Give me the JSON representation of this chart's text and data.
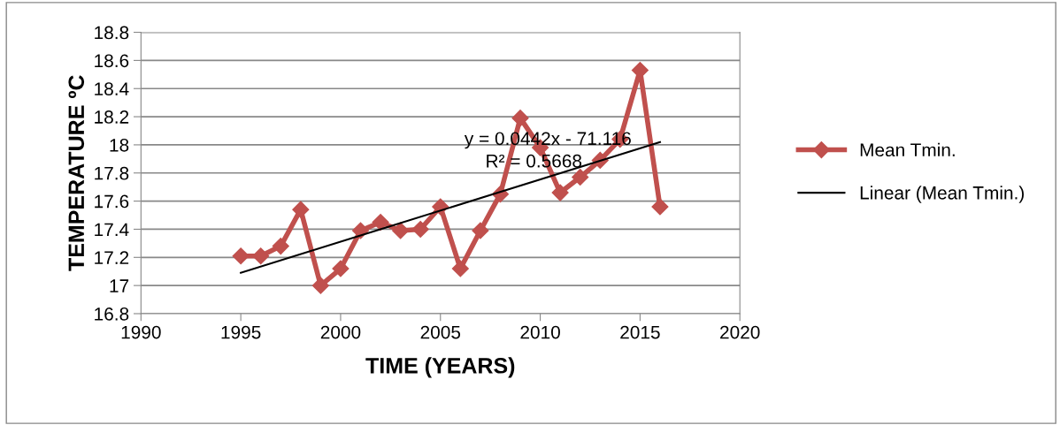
{
  "chart_data": {
    "type": "line",
    "xlabel": "TIME (YEARS)",
    "ylabel": "TEMPERATURE ºC",
    "x": [
      1995,
      1996,
      1997,
      1998,
      1999,
      2000,
      2001,
      2002,
      2003,
      2004,
      2005,
      2006,
      2007,
      2008,
      2009,
      2010,
      2011,
      2012,
      2013,
      2014,
      2015,
      2016
    ],
    "series": [
      {
        "name": "Mean Tmin.",
        "color": "#c0504d",
        "marker": "diamond",
        "values": [
          17.21,
          17.21,
          17.28,
          17.54,
          17.0,
          17.12,
          17.39,
          17.45,
          17.39,
          17.4,
          17.56,
          17.12,
          17.39,
          17.65,
          18.19,
          17.98,
          17.66,
          17.77,
          17.89,
          18.04,
          18.53,
          17.56
        ]
      },
      {
        "name": "Linear (Mean Tmin.)",
        "color": "#000000",
        "marker": "none",
        "x": [
          1995,
          2016
        ],
        "values": [
          17.09,
          18.02
        ]
      }
    ],
    "annotations": [
      "y = 0.0442x - 71.116",
      "R² = 0.5668"
    ],
    "xlim": [
      1990,
      2020
    ],
    "xticks": [
      1990,
      1995,
      2000,
      2005,
      2010,
      2015,
      2020
    ],
    "ylim": [
      16.8,
      18.8
    ],
    "yticks": [
      16.8,
      17,
      17.2,
      17.4,
      17.6,
      17.8,
      18,
      18.2,
      18.4,
      18.6,
      18.8
    ],
    "grid": "y",
    "legend": "right"
  }
}
